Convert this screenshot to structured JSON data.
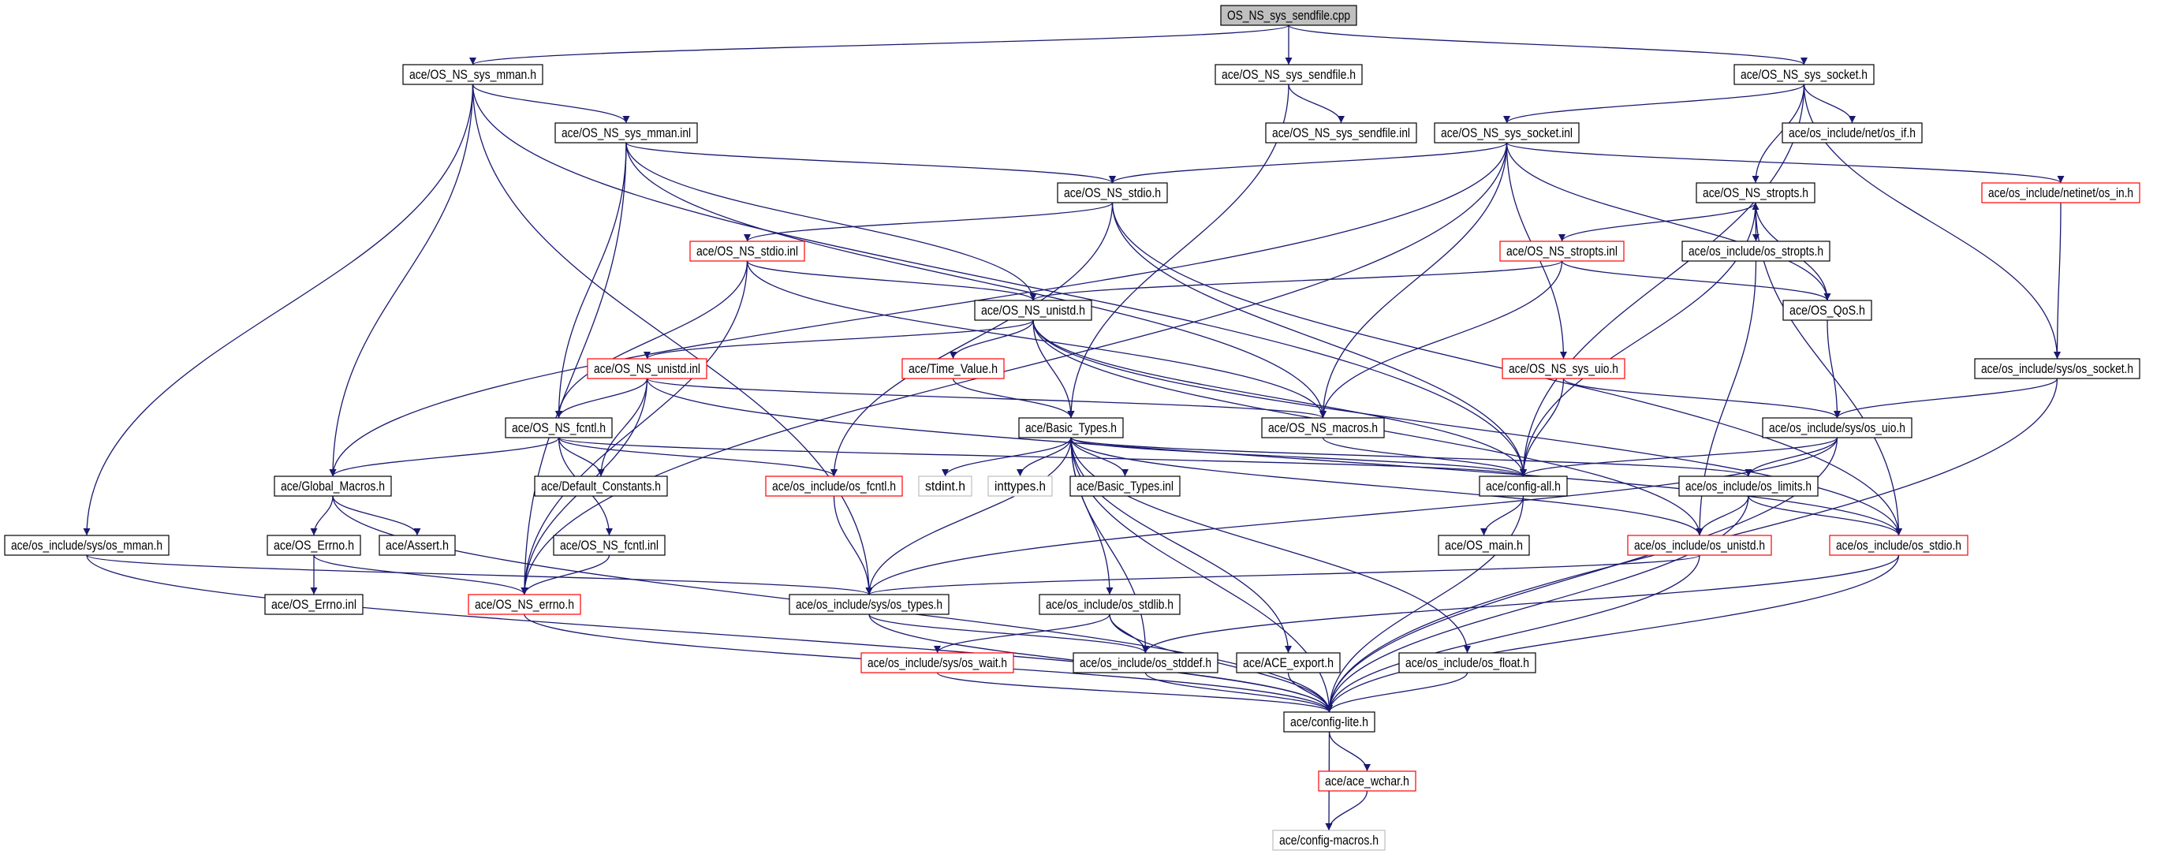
{
  "colors": {
    "edge": "#191970",
    "root_fill": "#bfbfbf",
    "normal_border": "#000000",
    "truncated_border": "#ff0000",
    "external_border": "#bfbfbf"
  },
  "nodes": [
    {
      "id": "cpp",
      "label": "OS_NS_sys_sendfile.cpp",
      "style": "root"
    },
    {
      "id": "sys_mman_h",
      "label": "ace/OS_NS_sys_mman.h",
      "style": "normal"
    },
    {
      "id": "sys_sendfile_h",
      "label": "ace/OS_NS_sys_sendfile.h",
      "style": "normal"
    },
    {
      "id": "sys_socket_h",
      "label": "ace/OS_NS_sys_socket.h",
      "style": "normal"
    },
    {
      "id": "sys_mman_inl",
      "label": "ace/OS_NS_sys_mman.inl",
      "style": "normal"
    },
    {
      "id": "sys_sendfile_inl",
      "label": "ace/OS_NS_sys_sendfile.inl",
      "style": "normal"
    },
    {
      "id": "sys_socket_inl",
      "label": "ace/OS_NS_sys_socket.inl",
      "style": "normal"
    },
    {
      "id": "net_os_if",
      "label": "ace/os_include/net/os_if.h",
      "style": "normal"
    },
    {
      "id": "stdio_h",
      "label": "ace/OS_NS_stdio.h",
      "style": "normal"
    },
    {
      "id": "stropts_h",
      "label": "ace/OS_NS_stropts.h",
      "style": "normal"
    },
    {
      "id": "netinet_os_in",
      "label": "ace/os_include/netinet/os_in.h",
      "style": "truncated"
    },
    {
      "id": "stdio_inl",
      "label": "ace/OS_NS_stdio.inl",
      "style": "truncated"
    },
    {
      "id": "stropts_inl",
      "label": "ace/OS_NS_stropts.inl",
      "style": "truncated"
    },
    {
      "id": "os_stropts",
      "label": "ace/os_include/os_stropts.h",
      "style": "normal"
    },
    {
      "id": "unistd_h",
      "label": "ace/OS_NS_unistd.h",
      "style": "normal"
    },
    {
      "id": "qos",
      "label": "ace/OS_QoS.h",
      "style": "normal"
    },
    {
      "id": "unistd_inl",
      "label": "ace/OS_NS_unistd.inl",
      "style": "truncated"
    },
    {
      "id": "time_value",
      "label": "ace/Time_Value.h",
      "style": "truncated"
    },
    {
      "id": "sys_uio_h",
      "label": "ace/OS_NS_sys_uio.h",
      "style": "truncated"
    },
    {
      "id": "sys_os_socket",
      "label": "ace/os_include/sys/os_socket.h",
      "style": "normal"
    },
    {
      "id": "fcntl_h",
      "label": "ace/OS_NS_fcntl.h",
      "style": "normal"
    },
    {
      "id": "basic_types_h",
      "label": "ace/Basic_Types.h",
      "style": "normal"
    },
    {
      "id": "macros_h",
      "label": "ace/OS_NS_macros.h",
      "style": "normal"
    },
    {
      "id": "sys_os_uio",
      "label": "ace/os_include/sys/os_uio.h",
      "style": "normal"
    },
    {
      "id": "global_macros",
      "label": "ace/Global_Macros.h",
      "style": "normal"
    },
    {
      "id": "default_constants",
      "label": "ace/Default_Constants.h",
      "style": "normal"
    },
    {
      "id": "os_fcntl",
      "label": "ace/os_include/os_fcntl.h",
      "style": "truncated"
    },
    {
      "id": "stdint",
      "label": "stdint.h",
      "style": "external"
    },
    {
      "id": "inttypes",
      "label": "inttypes.h",
      "style": "external"
    },
    {
      "id": "basic_types_inl",
      "label": "ace/Basic_Types.inl",
      "style": "normal"
    },
    {
      "id": "config_all",
      "label": "ace/config-all.h",
      "style": "normal"
    },
    {
      "id": "os_limits",
      "label": "ace/os_include/os_limits.h",
      "style": "normal"
    },
    {
      "id": "sys_os_mman",
      "label": "ace/os_include/sys/os_mman.h",
      "style": "normal"
    },
    {
      "id": "os_errno_h",
      "label": "ace/OS_Errno.h",
      "style": "normal"
    },
    {
      "id": "assert_h",
      "label": "ace/Assert.h",
      "style": "normal"
    },
    {
      "id": "fcntl_inl",
      "label": "ace/OS_NS_fcntl.inl",
      "style": "normal"
    },
    {
      "id": "os_main",
      "label": "ace/OS_main.h",
      "style": "normal"
    },
    {
      "id": "os_unistd",
      "label": "ace/os_include/os_unistd.h",
      "style": "truncated"
    },
    {
      "id": "os_stdio",
      "label": "ace/os_include/os_stdio.h",
      "style": "truncated"
    },
    {
      "id": "os_errno_inl",
      "label": "ace/OS_Errno.inl",
      "style": "normal"
    },
    {
      "id": "ns_errno",
      "label": "ace/OS_NS_errno.h",
      "style": "truncated"
    },
    {
      "id": "sys_os_types",
      "label": "ace/os_include/sys/os_types.h",
      "style": "normal"
    },
    {
      "id": "os_stdlib",
      "label": "ace/os_include/os_stdlib.h",
      "style": "normal"
    },
    {
      "id": "sys_os_wait",
      "label": "ace/os_include/sys/os_wait.h",
      "style": "truncated"
    },
    {
      "id": "os_stddef",
      "label": "ace/os_include/os_stddef.h",
      "style": "normal"
    },
    {
      "id": "ace_export",
      "label": "ace/ACE_export.h",
      "style": "normal"
    },
    {
      "id": "os_float",
      "label": "ace/os_include/os_float.h",
      "style": "normal"
    },
    {
      "id": "config_lite",
      "label": "ace/config-lite.h",
      "style": "normal"
    },
    {
      "id": "ace_wchar",
      "label": "ace/ace_wchar.h",
      "style": "truncated"
    },
    {
      "id": "config_macros",
      "label": "ace/config-macros.h",
      "style": "external"
    }
  ],
  "edges": [
    [
      "cpp",
      "sys_mman_h"
    ],
    [
      "cpp",
      "sys_sendfile_h"
    ],
    [
      "cpp",
      "sys_socket_h"
    ],
    [
      "sys_mman_h",
      "sys_mman_inl"
    ],
    [
      "sys_mman_h",
      "global_macros"
    ],
    [
      "sys_mman_h",
      "sys_os_mman"
    ],
    [
      "sys_mman_h",
      "sys_os_types"
    ],
    [
      "sys_mman_h",
      "config_all"
    ],
    [
      "sys_mman_inl",
      "stdio_h"
    ],
    [
      "sys_mman_inl",
      "unistd_h"
    ],
    [
      "sys_mman_inl",
      "macros_h"
    ],
    [
      "sys_mman_inl",
      "fcntl_h"
    ],
    [
      "sys_mman_inl",
      "ns_errno"
    ],
    [
      "sys_sendfile_h",
      "sys_sendfile_inl"
    ],
    [
      "sys_sendfile_h",
      "basic_types_h"
    ],
    [
      "sys_socket_h",
      "sys_socket_inl"
    ],
    [
      "sys_socket_h",
      "net_os_if"
    ],
    [
      "sys_socket_h",
      "stropts_h"
    ],
    [
      "sys_socket_h",
      "config_all"
    ],
    [
      "sys_socket_h",
      "sys_os_socket"
    ],
    [
      "sys_socket_inl",
      "stdio_h"
    ],
    [
      "sys_socket_inl",
      "netinet_os_in"
    ],
    [
      "sys_socket_inl",
      "macros_h"
    ],
    [
      "sys_socket_inl",
      "sys_uio_h"
    ],
    [
      "sys_socket_inl",
      "qos"
    ],
    [
      "sys_socket_inl",
      "global_macros"
    ],
    [
      "sys_socket_inl",
      "ns_errno"
    ],
    [
      "stdio_h",
      "stdio_inl"
    ],
    [
      "stdio_h",
      "os_fcntl"
    ],
    [
      "stdio_h",
      "config_all"
    ],
    [
      "stdio_h",
      "os_stdio"
    ],
    [
      "stdio_inl",
      "unistd_h"
    ],
    [
      "stdio_inl",
      "fcntl_h"
    ],
    [
      "stdio_inl",
      "ns_errno"
    ],
    [
      "stdio_inl",
      "macros_h"
    ],
    [
      "stropts_h",
      "stropts_inl"
    ],
    [
      "stropts_h",
      "os_stropts"
    ],
    [
      "stropts_h",
      "config_all"
    ],
    [
      "stropts_h",
      "os_stdio"
    ],
    [
      "stropts_inl",
      "unistd_h"
    ],
    [
      "stropts_inl",
      "qos"
    ],
    [
      "stropts_inl",
      "macros_h"
    ],
    [
      "qos",
      "stropts_h"
    ],
    [
      "qos",
      "sys_os_uio"
    ],
    [
      "os_stropts",
      "os_unistd"
    ],
    [
      "netinet_os_in",
      "sys_os_socket"
    ],
    [
      "unistd_h",
      "unistd_inl"
    ],
    [
      "unistd_h",
      "time_value"
    ],
    [
      "unistd_h",
      "basic_types_h"
    ],
    [
      "unistd_h",
      "config_all"
    ],
    [
      "unistd_h",
      "os_stdio"
    ],
    [
      "unistd_h",
      "os_unistd"
    ],
    [
      "unistd_inl",
      "fcntl_h"
    ],
    [
      "unistd_inl",
      "default_constants"
    ],
    [
      "unistd_inl",
      "ns_errno"
    ],
    [
      "unistd_inl",
      "macros_h"
    ],
    [
      "unistd_inl",
      "os_stdio"
    ],
    [
      "time_value",
      "basic_types_h"
    ],
    [
      "sys_uio_h",
      "config_all"
    ],
    [
      "sys_uio_h",
      "sys_os_uio"
    ],
    [
      "sys_os_socket",
      "sys_os_uio"
    ],
    [
      "sys_os_socket",
      "config_lite"
    ],
    [
      "fcntl_h",
      "global_macros"
    ],
    [
      "fcntl_h",
      "default_constants"
    ],
    [
      "fcntl_h",
      "fcntl_inl"
    ],
    [
      "fcntl_h",
      "os_fcntl"
    ],
    [
      "fcntl_h",
      "config_all"
    ],
    [
      "basic_types_h",
      "stdint"
    ],
    [
      "basic_types_h",
      "inttypes"
    ],
    [
      "basic_types_h",
      "basic_types_inl"
    ],
    [
      "basic_types_h",
      "config_all"
    ],
    [
      "basic_types_h",
      "os_limits"
    ],
    [
      "basic_types_h",
      "sys_os_types"
    ],
    [
      "basic_types_h",
      "os_stdlib"
    ],
    [
      "basic_types_h",
      "os_stddef"
    ],
    [
      "basic_types_h",
      "ace_export"
    ],
    [
      "basic_types_h",
      "os_float"
    ],
    [
      "basic_types_h",
      "config_lite"
    ],
    [
      "basic_types_h",
      "os_unistd"
    ],
    [
      "macros_h",
      "config_all"
    ],
    [
      "sys_os_uio",
      "os_limits"
    ],
    [
      "sys_os_uio",
      "sys_os_types"
    ],
    [
      "sys_os_uio",
      "config_lite"
    ],
    [
      "sys_os_uio",
      "config_all"
    ],
    [
      "global_macros",
      "os_errno_h"
    ],
    [
      "global_macros",
      "assert_h"
    ],
    [
      "global_macros",
      "config_lite"
    ],
    [
      "os_fcntl",
      "sys_os_types"
    ],
    [
      "config_all",
      "os_main"
    ],
    [
      "config_all",
      "config_lite"
    ],
    [
      "os_limits",
      "os_unistd"
    ],
    [
      "os_limits",
      "os_stdio"
    ],
    [
      "os_limits",
      "config_lite"
    ],
    [
      "sys_os_mman",
      "sys_os_types"
    ],
    [
      "sys_os_mman",
      "config_lite"
    ],
    [
      "os_errno_h",
      "os_errno_inl"
    ],
    [
      "os_errno_h",
      "ns_errno"
    ],
    [
      "fcntl_inl",
      "ns_errno"
    ],
    [
      "os_unistd",
      "sys_os_types"
    ],
    [
      "os_unistd",
      "config_lite"
    ],
    [
      "os_stdio",
      "os_stddef"
    ],
    [
      "os_stdio",
      "config_lite"
    ],
    [
      "ns_errno",
      "config_lite"
    ],
    [
      "sys_os_types",
      "os_stddef"
    ],
    [
      "sys_os_types",
      "config_lite"
    ],
    [
      "os_stdlib",
      "sys_os_wait"
    ],
    [
      "os_stdlib",
      "os_stddef"
    ],
    [
      "os_stdlib",
      "config_lite"
    ],
    [
      "sys_os_wait",
      "config_lite"
    ],
    [
      "os_stddef",
      "config_lite"
    ],
    [
      "ace_export",
      "config_lite"
    ],
    [
      "os_float",
      "config_lite"
    ],
    [
      "config_lite",
      "ace_wchar"
    ],
    [
      "config_lite",
      "config_macros"
    ],
    [
      "ace_wchar",
      "config_macros"
    ]
  ]
}
